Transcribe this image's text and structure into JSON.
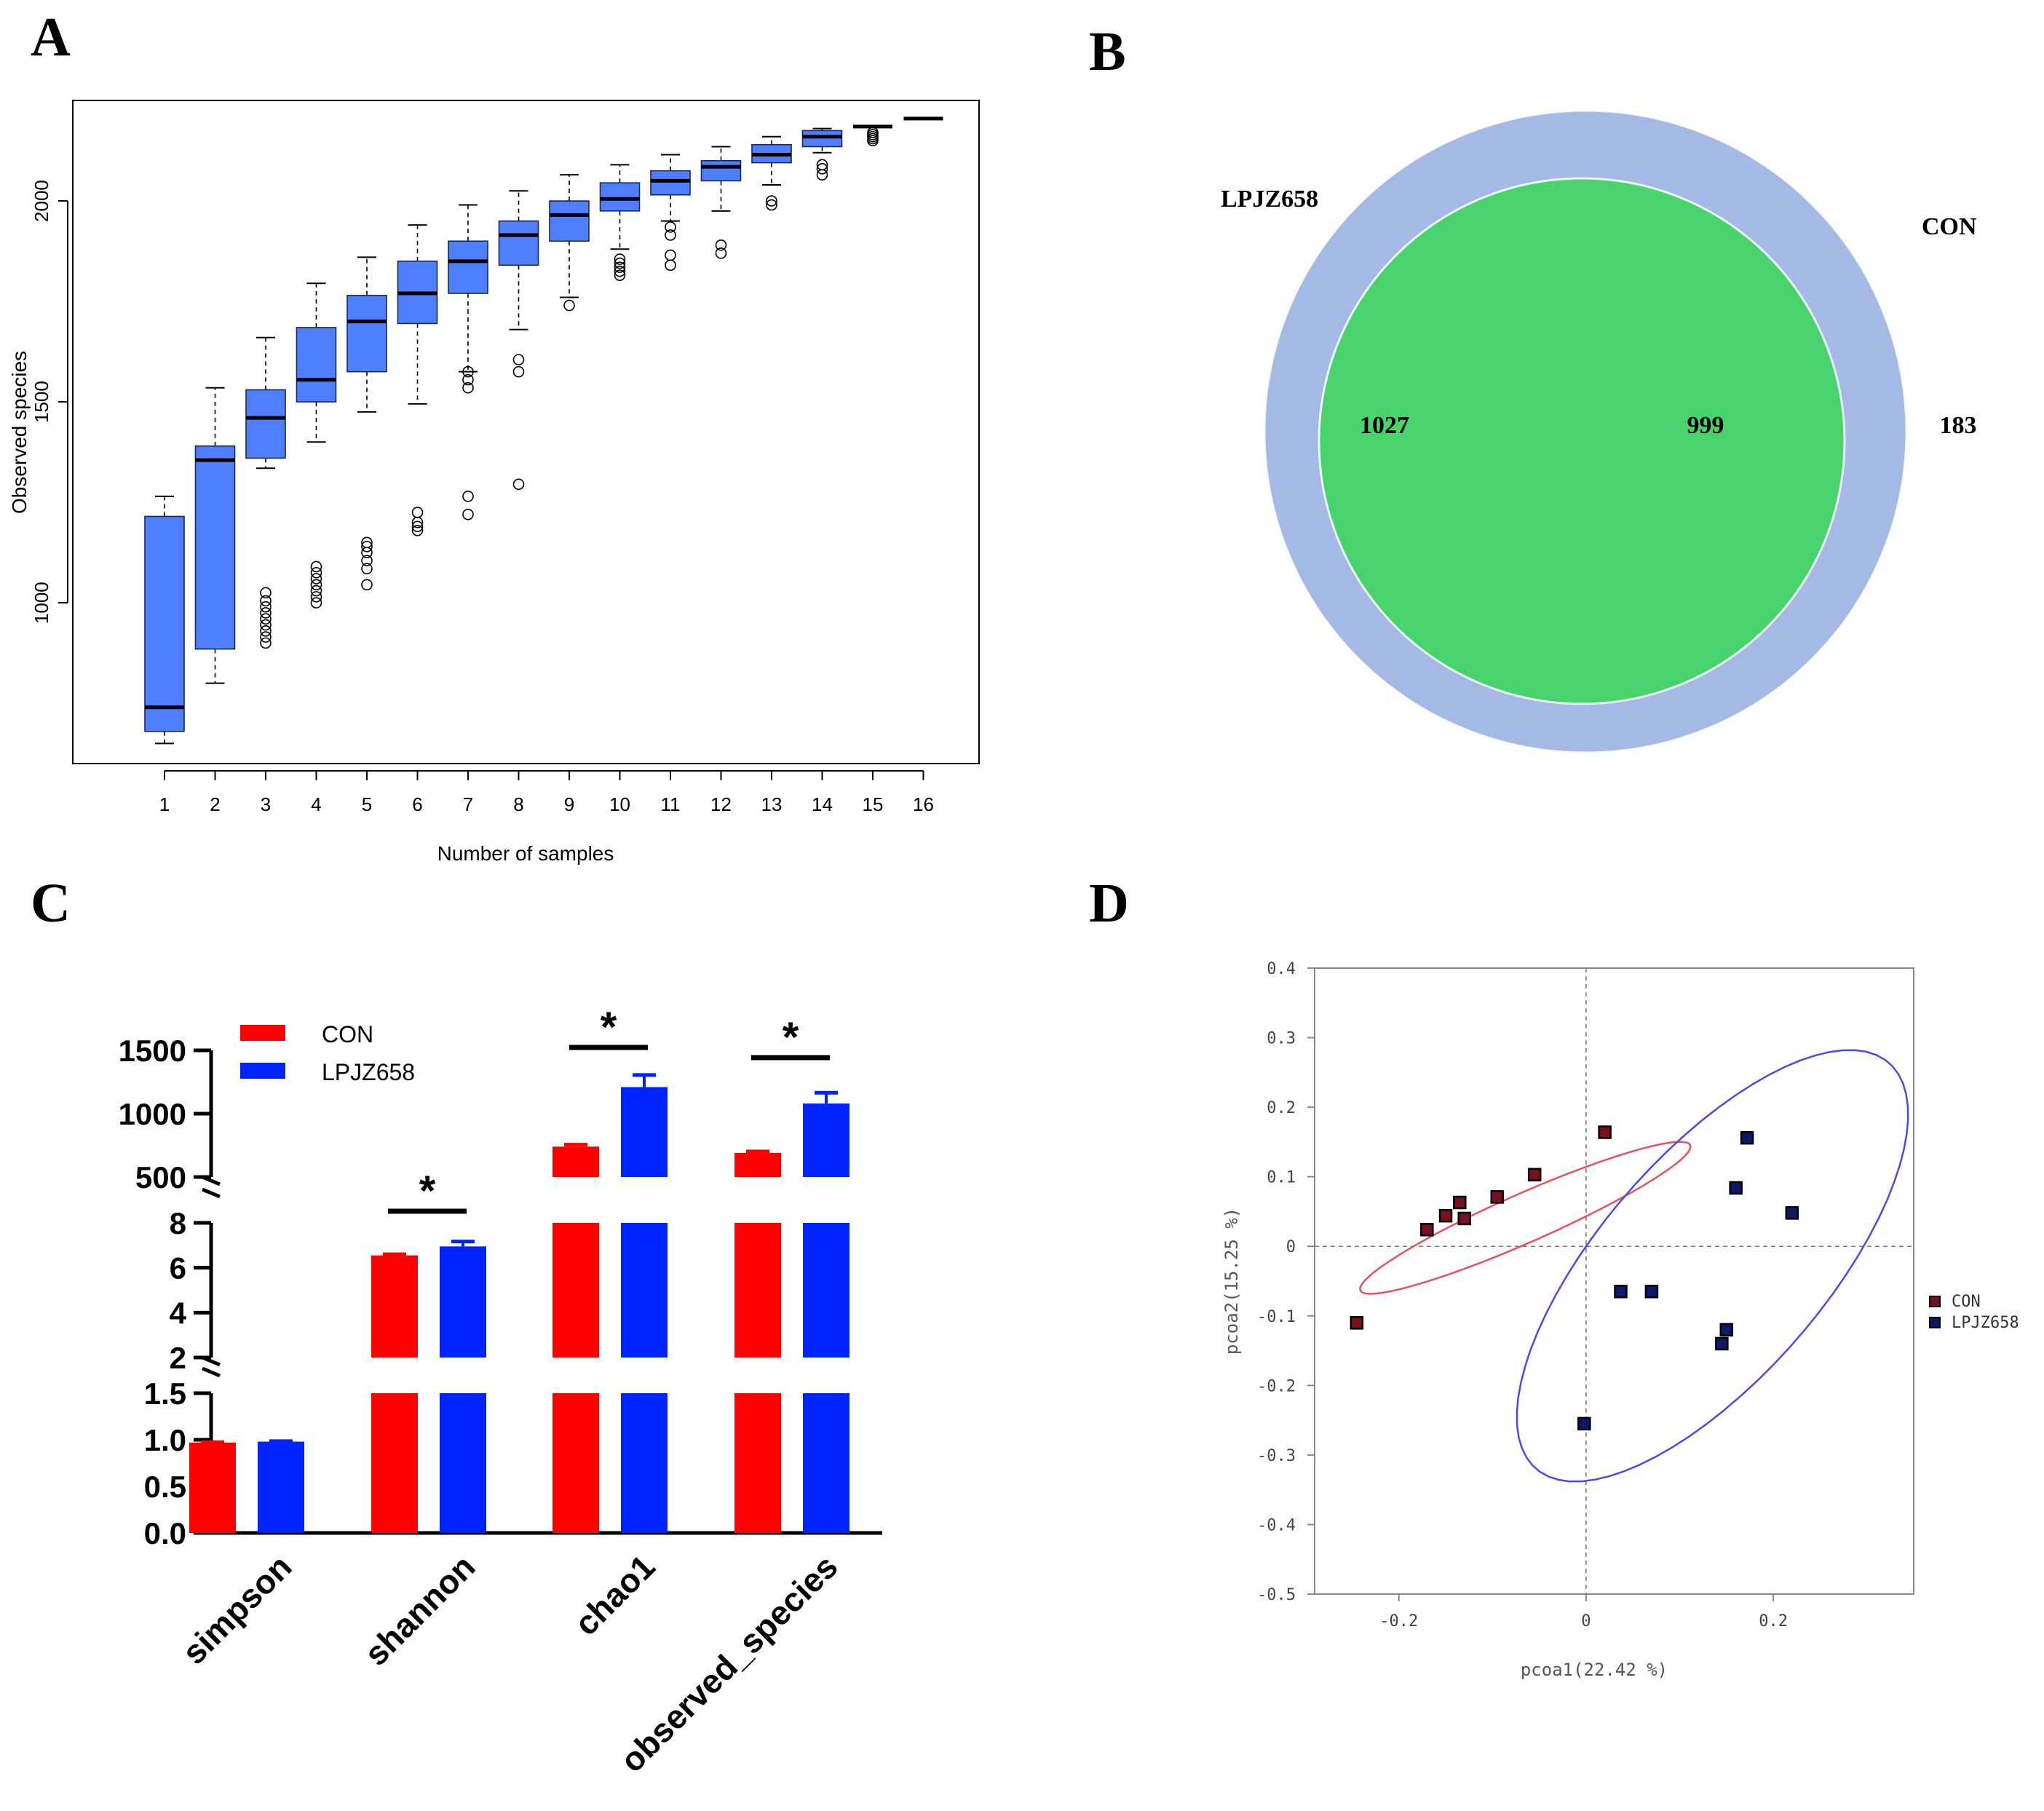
{
  "panels": {
    "a": "A",
    "b": "B",
    "c": "C",
    "d": "D"
  },
  "colors": {
    "box": "#4f7fff",
    "con": "#ff0000",
    "lpjz": "#0022ff",
    "venn_left": "#a4bae4",
    "venn_right": "#6ce56e",
    "venn_overlap": "#48d36c",
    "pcoa_con": "#7a0f1e",
    "pcoa_lpjz": "#0a1a66",
    "ellipse_con": "#e6525f",
    "ellipse_lpjz": "#4e49e6"
  },
  "chart_data": [
    {
      "id": "A",
      "type": "boxplot",
      "xlabel": "Number of samples",
      "ylabel": "Observed species",
      "ylim": [
        600,
        2250
      ],
      "yticks": [
        1000,
        1500,
        2000
      ],
      "categories": [
        "1",
        "2",
        "3",
        "4",
        "5",
        "6",
        "7",
        "8",
        "9",
        "10",
        "11",
        "12",
        "13",
        "14",
        "15",
        "16"
      ],
      "boxes": [
        {
          "min": 650,
          "q1": 680,
          "median": 740,
          "q3": 1215,
          "max": 1265,
          "outliers": []
        },
        {
          "min": 800,
          "q1": 885,
          "median": 1355,
          "q3": 1390,
          "max": 1535,
          "outliers": []
        },
        {
          "min": 1335,
          "q1": 1360,
          "median": 1460,
          "q3": 1530,
          "max": 1660,
          "outliers": [
            900,
            915,
            930,
            945,
            960,
            975,
            990,
            1005,
            1025
          ]
        },
        {
          "min": 1400,
          "q1": 1500,
          "median": 1555,
          "q3": 1685,
          "max": 1795,
          "outliers": [
            1000,
            1015,
            1030,
            1045,
            1060,
            1075,
            1090
          ]
        },
        {
          "min": 1475,
          "q1": 1575,
          "median": 1700,
          "q3": 1765,
          "max": 1860,
          "outliers": [
            1045,
            1085,
            1105,
            1125,
            1140,
            1150
          ]
        },
        {
          "min": 1495,
          "q1": 1695,
          "median": 1770,
          "q3": 1850,
          "max": 1940,
          "outliers": [
            1180,
            1190,
            1200,
            1225
          ]
        },
        {
          "min": 1575,
          "q1": 1770,
          "median": 1850,
          "q3": 1900,
          "max": 1990,
          "outliers": [
            1220,
            1265,
            1535,
            1555,
            1575
          ]
        },
        {
          "min": 1680,
          "q1": 1840,
          "median": 1915,
          "q3": 1950,
          "max": 2025,
          "outliers": [
            1295,
            1575,
            1605
          ]
        },
        {
          "min": 1760,
          "q1": 1900,
          "median": 1965,
          "q3": 2000,
          "max": 2065,
          "outliers": [
            1740
          ]
        },
        {
          "min": 1880,
          "q1": 1975,
          "median": 2005,
          "q3": 2045,
          "max": 2090,
          "outliers": [
            1815,
            1825,
            1835,
            1845,
            1855
          ]
        },
        {
          "min": 1950,
          "q1": 2015,
          "median": 2050,
          "q3": 2075,
          "max": 2115,
          "outliers": [
            1840,
            1865,
            1915,
            1935
          ]
        },
        {
          "min": 1975,
          "q1": 2050,
          "median": 2085,
          "q3": 2100,
          "max": 2135,
          "outliers": [
            1870,
            1890
          ]
        },
        {
          "min": 2040,
          "q1": 2095,
          "median": 2115,
          "q3": 2140,
          "max": 2160,
          "outliers": [
            1990,
            2000
          ]
        },
        {
          "min": 2120,
          "q1": 2135,
          "median": 2160,
          "q3": 2175,
          "max": 2180,
          "outliers": [
            2065,
            2080,
            2090
          ]
        },
        {
          "min": 2185,
          "q1": 2185,
          "median": 2185,
          "q3": 2185,
          "max": 2185,
          "outliers": [
            2150,
            2155,
            2160,
            2165,
            2170
          ]
        },
        {
          "min": 2205,
          "q1": 2205,
          "median": 2205,
          "q3": 2205,
          "max": 2205,
          "outliers": []
        }
      ]
    },
    {
      "id": "B",
      "type": "venn",
      "sets": [
        {
          "name": "LPJZ658",
          "unique": 1027
        },
        {
          "name": "CON",
          "unique": 183
        }
      ],
      "overlap": 999
    },
    {
      "id": "C",
      "type": "bar",
      "categories": [
        "simpson",
        "shannon",
        "chao1",
        "observed_species"
      ],
      "series": [
        {
          "name": "CON",
          "values": [
            0.97,
            6.55,
            740,
            690
          ],
          "errors": [
            0.005,
            0.05,
            15,
            12
          ]
        },
        {
          "name": "LPJZ658",
          "values": [
            0.98,
            6.95,
            1210,
            1080
          ],
          "errors": [
            0.005,
            0.22,
            95,
            85
          ]
        }
      ],
      "significance": [
        "",
        "*",
        "*",
        "*"
      ],
      "axis_segments": [
        {
          "range": [
            0,
            1.5
          ],
          "ticks": [
            "0.0",
            "0.5",
            "1.0",
            "1.5"
          ]
        },
        {
          "range": [
            2,
            8
          ],
          "ticks": [
            "2",
            "4",
            "6",
            "8"
          ]
        },
        {
          "range": [
            500,
            1500
          ],
          "ticks": [
            "500",
            "1000",
            "1500"
          ]
        }
      ]
    },
    {
      "id": "D",
      "type": "scatter",
      "xlabel": "pcoa1(22.42 %)",
      "ylabel": "pcoa2(15.25 %)",
      "xlim": [
        -0.29,
        0.35
      ],
      "ylim": [
        -0.5,
        0.4
      ],
      "xticks": [
        "-0.2",
        "0",
        "0.2"
      ],
      "yticks": [
        "0.4",
        "0.3",
        "0.2",
        "0.1",
        "0",
        "-0.1",
        "-0.2",
        "-0.3",
        "-0.4",
        "-0.5"
      ],
      "series": [
        {
          "name": "CON",
          "points": [
            [
              -0.245,
              -0.11
            ],
            [
              -0.17,
              0.024
            ],
            [
              -0.15,
              0.044
            ],
            [
              -0.135,
              0.063
            ],
            [
              -0.13,
              0.04
            ],
            [
              -0.095,
              0.071
            ],
            [
              -0.055,
              0.103
            ],
            [
              0.02,
              0.164
            ]
          ]
        },
        {
          "name": "LPJZ658",
          "points": [
            [
              -0.002,
              -0.255
            ],
            [
              0.037,
              -0.065
            ],
            [
              0.07,
              -0.065
            ],
            [
              0.145,
              -0.14
            ],
            [
              0.15,
              -0.12
            ],
            [
              0.16,
              0.084
            ],
            [
              0.172,
              0.156
            ],
            [
              0.22,
              0.048
            ]
          ]
        }
      ],
      "ellipses": [
        {
          "group": "CON",
          "center": [
            -0.065,
            0.041
          ],
          "semi_major": 0.205,
          "semi_minor": 0.033,
          "angle_deg": 31
        },
        {
          "group": "LPJZ658",
          "center": [
            0.135,
            -0.028
          ],
          "semi_major": 0.35,
          "semi_minor": 0.132,
          "angle_deg": 60
        }
      ]
    }
  ]
}
